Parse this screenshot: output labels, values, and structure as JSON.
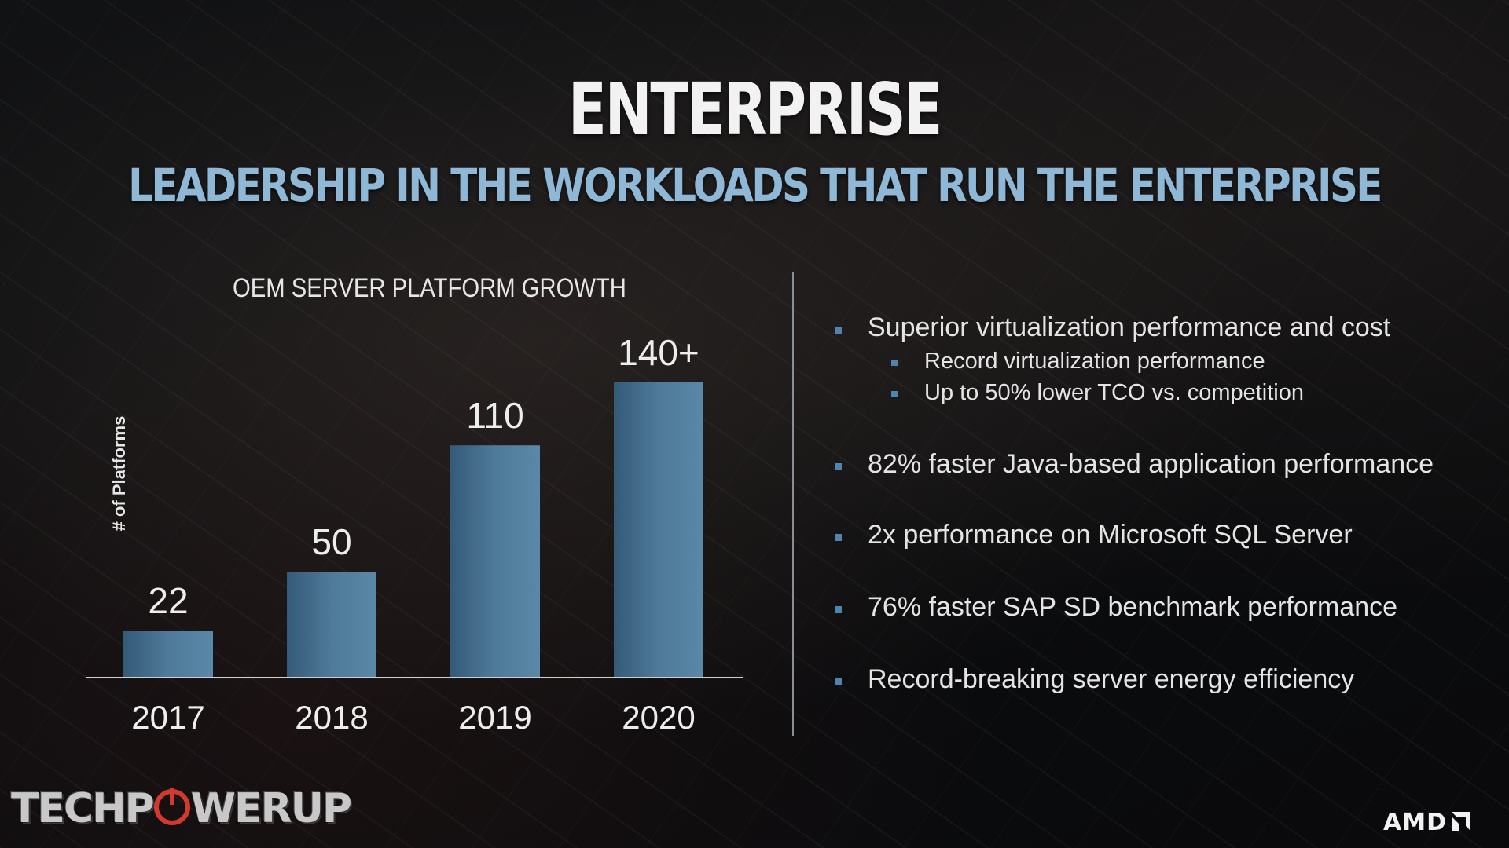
{
  "slide": {
    "title": "ENTERPRISE",
    "subtitle": "LEADERSHIP IN THE WORKLOADS THAT RUN THE ENTERPRISE"
  },
  "chart_data": {
    "type": "bar",
    "title": "OEM SERVER PLATFORM GROWTH",
    "xlabel": "",
    "ylabel": "# of Platforms",
    "categories": [
      "2017",
      "2018",
      "2019",
      "2020"
    ],
    "values": [
      22,
      50,
      110,
      140
    ],
    "data_labels": [
      "22",
      "50",
      "110",
      "140+"
    ],
    "ylim": [
      0,
      150
    ],
    "grid": false,
    "bar_color": "#4f7a99"
  },
  "bullets": [
    {
      "text": "Superior virtualization performance and cost",
      "sub": [
        "Record virtualization performance",
        "Up to 50% lower TCO vs. competition"
      ]
    },
    {
      "text": "82% faster Java-based application performance",
      "sub": []
    },
    {
      "text": "2x performance on Microsoft SQL Server",
      "sub": []
    },
    {
      "text": "76% faster SAP SD benchmark performance",
      "sub": []
    },
    {
      "text": "Record-breaking server energy efficiency",
      "sub": []
    }
  ],
  "logos": {
    "watermark": "TECHPOWERUP",
    "brand": "AMD"
  },
  "colors": {
    "accent": "#4f84ad",
    "subtitle": "#8eb8d6",
    "watermark_red": "#d23a2e"
  }
}
